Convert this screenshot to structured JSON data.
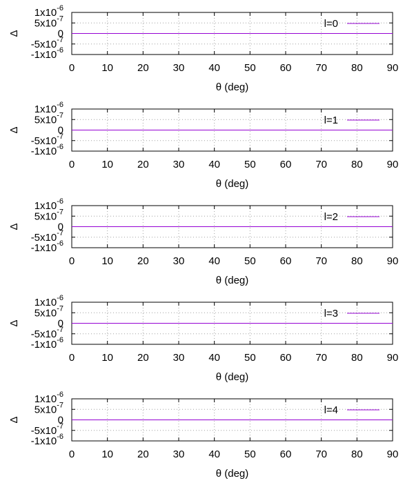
{
  "chart_data": [
    {
      "type": "line",
      "xlabel": "θ (deg)",
      "ylabel": "Δ",
      "xlim": [
        0,
        90
      ],
      "ylim": [
        -1e-06,
        1e-06
      ],
      "xticks": [
        "0",
        "10",
        "20",
        "30",
        "40",
        "50",
        "60",
        "70",
        "80",
        "90"
      ],
      "yticks": [
        {
          "value": 1e-06,
          "mantissa": "1x10",
          "exp": "-6"
        },
        {
          "value": 5e-07,
          "mantissa": "5x10",
          "exp": "-7"
        },
        {
          "value": 0,
          "mantissa": "0",
          "exp": ""
        },
        {
          "value": -5e-07,
          "mantissa": "-5x10",
          "exp": "-7"
        },
        {
          "value": -1e-06,
          "mantissa": "-1x10",
          "exp": "-6"
        }
      ],
      "grid": true,
      "legend": "top-right",
      "series": [
        {
          "name": "l=0",
          "color": "#9400d3",
          "x": [
            0,
            90
          ],
          "y": [
            0,
            0
          ]
        }
      ]
    },
    {
      "type": "line",
      "xlabel": "θ (deg)",
      "ylabel": "Δ",
      "xlim": [
        0,
        90
      ],
      "ylim": [
        -1e-06,
        1e-06
      ],
      "xticks": [
        "0",
        "10",
        "20",
        "30",
        "40",
        "50",
        "60",
        "70",
        "80",
        "90"
      ],
      "yticks": [
        {
          "value": 1e-06,
          "mantissa": "1x10",
          "exp": "-6"
        },
        {
          "value": 5e-07,
          "mantissa": "5x10",
          "exp": "-7"
        },
        {
          "value": 0,
          "mantissa": "0",
          "exp": ""
        },
        {
          "value": -5e-07,
          "mantissa": "-5x10",
          "exp": "-7"
        },
        {
          "value": -1e-06,
          "mantissa": "-1x10",
          "exp": "-6"
        }
      ],
      "grid": true,
      "legend": "top-right",
      "series": [
        {
          "name": "l=1",
          "color": "#9400d3",
          "x": [
            0,
            90
          ],
          "y": [
            0,
            0
          ]
        }
      ]
    },
    {
      "type": "line",
      "xlabel": "θ (deg)",
      "ylabel": "Δ",
      "xlim": [
        0,
        90
      ],
      "ylim": [
        -1e-06,
        1e-06
      ],
      "xticks": [
        "0",
        "10",
        "20",
        "30",
        "40",
        "50",
        "60",
        "70",
        "80",
        "90"
      ],
      "yticks": [
        {
          "value": 1e-06,
          "mantissa": "1x10",
          "exp": "-6"
        },
        {
          "value": 5e-07,
          "mantissa": "5x10",
          "exp": "-7"
        },
        {
          "value": 0,
          "mantissa": "0",
          "exp": ""
        },
        {
          "value": -5e-07,
          "mantissa": "-5x10",
          "exp": "-7"
        },
        {
          "value": -1e-06,
          "mantissa": "-1x10",
          "exp": "-6"
        }
      ],
      "grid": true,
      "legend": "top-right",
      "series": [
        {
          "name": "l=2",
          "color": "#9400d3",
          "x": [
            0,
            90
          ],
          "y": [
            0,
            0
          ]
        }
      ]
    },
    {
      "type": "line",
      "xlabel": "θ (deg)",
      "ylabel": "Δ",
      "xlim": [
        0,
        90
      ],
      "ylim": [
        -1e-06,
        1e-06
      ],
      "xticks": [
        "0",
        "10",
        "20",
        "30",
        "40",
        "50",
        "60",
        "70",
        "80",
        "90"
      ],
      "yticks": [
        {
          "value": 1e-06,
          "mantissa": "1x10",
          "exp": "-6"
        },
        {
          "value": 5e-07,
          "mantissa": "5x10",
          "exp": "-7"
        },
        {
          "value": 0,
          "mantissa": "0",
          "exp": ""
        },
        {
          "value": -5e-07,
          "mantissa": "-5x10",
          "exp": "-7"
        },
        {
          "value": -1e-06,
          "mantissa": "-1x10",
          "exp": "-6"
        }
      ],
      "grid": true,
      "legend": "top-right",
      "series": [
        {
          "name": "l=3",
          "color": "#9400d3",
          "x": [
            0,
            90
          ],
          "y": [
            0,
            0
          ]
        }
      ]
    },
    {
      "type": "line",
      "xlabel": "θ (deg)",
      "ylabel": "Δ",
      "xlim": [
        0,
        90
      ],
      "ylim": [
        -1e-06,
        1e-06
      ],
      "xticks": [
        "0",
        "10",
        "20",
        "30",
        "40",
        "50",
        "60",
        "70",
        "80",
        "90"
      ],
      "yticks": [
        {
          "value": 1e-06,
          "mantissa": "1x10",
          "exp": "-6"
        },
        {
          "value": 5e-07,
          "mantissa": "5x10",
          "exp": "-7"
        },
        {
          "value": 0,
          "mantissa": "0",
          "exp": ""
        },
        {
          "value": -5e-07,
          "mantissa": "-5x10",
          "exp": "-7"
        },
        {
          "value": -1e-06,
          "mantissa": "-1x10",
          "exp": "-6"
        }
      ],
      "grid": true,
      "legend": "top-right",
      "series": [
        {
          "name": "l=4",
          "color": "#9400d3",
          "x": [
            0,
            90
          ],
          "y": [
            0,
            0
          ]
        }
      ]
    }
  ]
}
